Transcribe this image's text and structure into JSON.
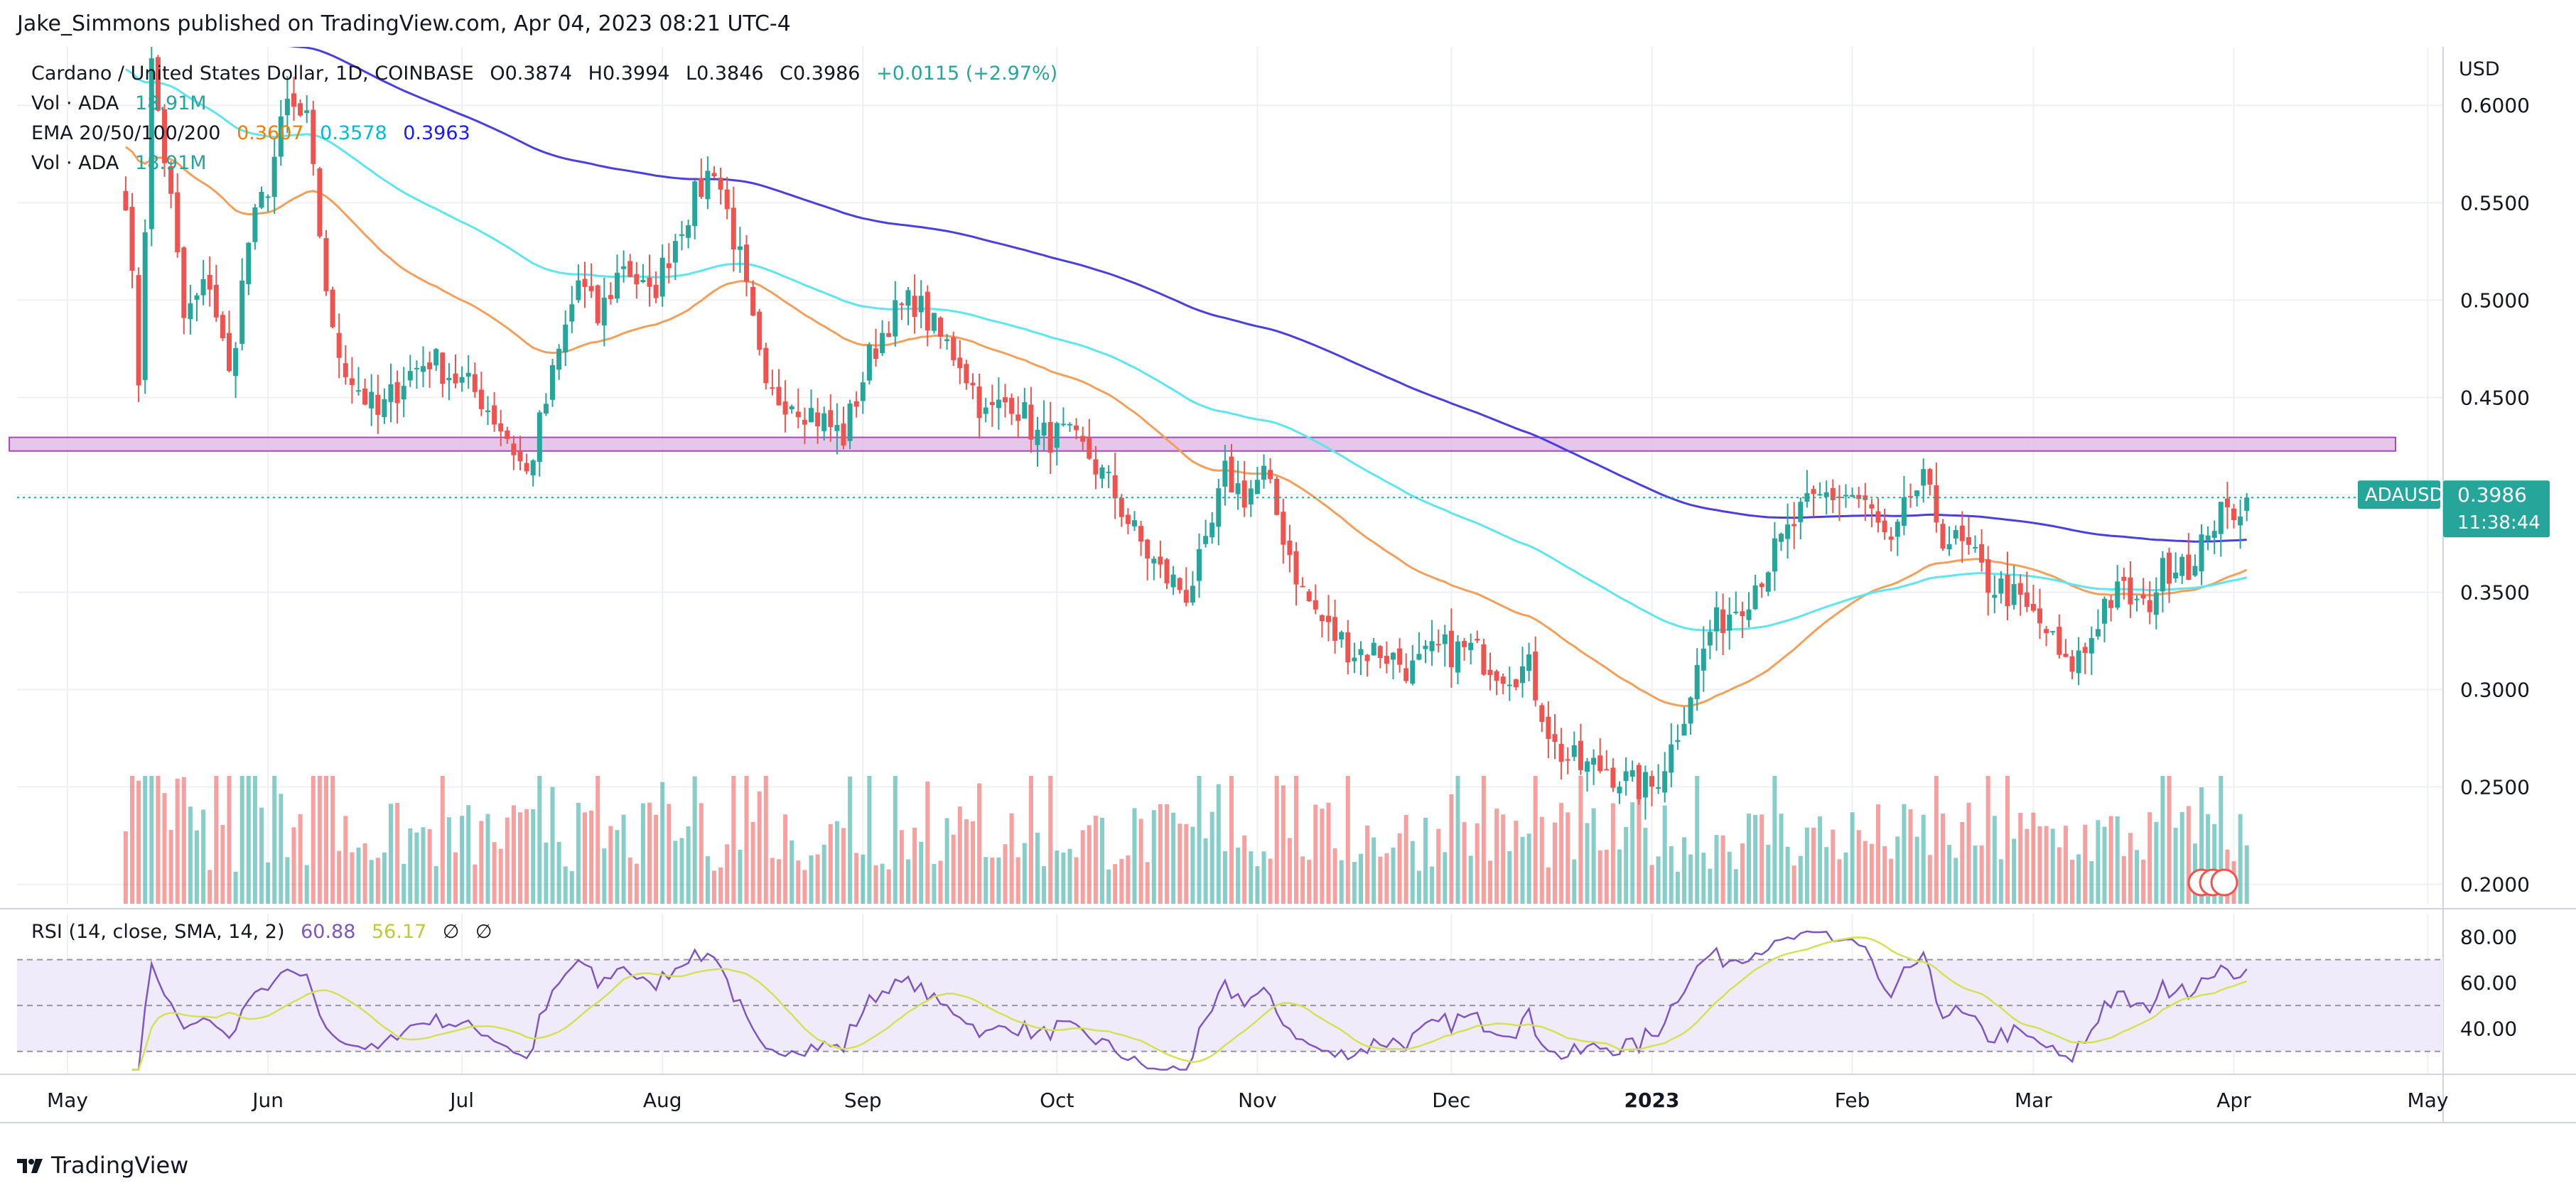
{
  "header": {
    "published": "Jake_Simmons published on TradingView.com, Apr 04, 2023 08:21 UTC-4"
  },
  "legend": {
    "symbol": "Cardano / United States Dollar, 1D, COINBASE",
    "o": "O0.3874",
    "h": "H0.3994",
    "l": "L0.3846",
    "c": "C0.3986",
    "chg": "+0.0115 (+2.97%)",
    "vol_label": "Vol · ADA",
    "vol_value": "18.91M",
    "ema_label": "EMA 20/50/100/200",
    "ema_50": "0.3607",
    "ema_100": "0.3578",
    "ema_200": "0.3963",
    "vol2_label": "Vol · ADA",
    "vol2_value": "18.91M",
    "rsi_label": "RSI (14, close, SMA, 14, 2)",
    "rsi_value": "60.88",
    "rsi_sma": "56.17",
    "rsi_extra1": "∅",
    "rsi_extra2": "∅"
  },
  "price_tag": {
    "symbol": "ADAUSD",
    "price": "0.3986",
    "countdown": "11:38:44"
  },
  "footer": {
    "brand": "TradingView"
  },
  "colors": {
    "up": "#26a69a",
    "down": "#ef5350",
    "ema50": "#f5a05a",
    "ema100": "#5ce6f0",
    "ema200": "#4a3fe0",
    "zone": "#e1bee7",
    "zone_border": "#9c27b0",
    "rsi_line": "#7e57c2",
    "rsi_sma": "#d4e157",
    "rsi_band": "#f0ebfa"
  },
  "chart_data": {
    "type": "candlestick",
    "title": "Cardano / United States Dollar, 1D, COINBASE",
    "currency_label": "USD",
    "ylim": [
      0.19,
      0.63
    ],
    "y_ticks": [
      "0.6000",
      "0.5500",
      "0.5000",
      "0.4500",
      "0.4000",
      "0.3500",
      "0.3000",
      "0.2500",
      "0.2000"
    ],
    "y_tick_values": [
      0.6,
      0.55,
      0.5,
      0.45,
      0.4,
      0.35,
      0.3,
      0.25,
      0.2
    ],
    "x_labels": [
      "May",
      "Jun",
      "Jul",
      "Aug",
      "Sep",
      "Oct",
      "Nov",
      "Dec",
      "2023",
      "Feb",
      "Mar",
      "Apr",
      "May"
    ],
    "x_label_days": [
      0,
      31,
      61,
      92,
      123,
      153,
      184,
      214,
      245,
      276,
      304,
      335,
      365
    ],
    "resistance_zone": [
      0.4225,
      0.4295
    ],
    "resistance_zone_days": [
      -9,
      360
    ],
    "rsi": {
      "ylim": [
        20,
        90
      ],
      "ticks": [
        "80.00",
        "60.00",
        "40.00"
      ],
      "tick_values": [
        80,
        60,
        40
      ],
      "bands": [
        70,
        50,
        30
      ]
    },
    "anchors": [
      [
        9,
        0.555
      ],
      [
        11,
        0.46
      ],
      [
        13,
        0.62
      ],
      [
        16,
        0.55
      ],
      [
        18,
        0.49
      ],
      [
        22,
        0.51
      ],
      [
        25,
        0.46
      ],
      [
        28,
        0.53
      ],
      [
        31,
        0.56
      ],
      [
        34,
        0.6
      ],
      [
        37,
        0.59
      ],
      [
        41,
        0.48
      ],
      [
        44,
        0.46
      ],
      [
        48,
        0.44
      ],
      [
        52,
        0.46
      ],
      [
        56,
        0.47
      ],
      [
        60,
        0.46
      ],
      [
        64,
        0.45
      ],
      [
        68,
        0.43
      ],
      [
        71,
        0.41
      ],
      [
        75,
        0.46
      ],
      [
        79,
        0.51
      ],
      [
        82,
        0.49
      ],
      [
        86,
        0.52
      ],
      [
        90,
        0.5
      ],
      [
        95,
        0.54
      ],
      [
        100,
        0.57
      ],
      [
        104,
        0.52
      ],
      [
        108,
        0.45
      ],
      [
        112,
        0.45
      ],
      [
        116,
        0.44
      ],
      [
        120,
        0.43
      ],
      [
        124,
        0.47
      ],
      [
        127,
        0.49
      ],
      [
        131,
        0.5
      ],
      [
        135,
        0.48
      ],
      [
        138,
        0.47
      ],
      [
        142,
        0.44
      ],
      [
        146,
        0.45
      ],
      [
        150,
        0.43
      ],
      [
        154,
        0.43
      ],
      [
        158,
        0.42
      ],
      [
        162,
        0.4
      ],
      [
        165,
        0.38
      ],
      [
        169,
        0.36
      ],
      [
        173,
        0.35
      ],
      [
        176,
        0.37
      ],
      [
        179,
        0.41
      ],
      [
        182,
        0.4
      ],
      [
        185,
        0.41
      ],
      [
        188,
        0.38
      ],
      [
        191,
        0.35
      ],
      [
        195,
        0.33
      ],
      [
        199,
        0.32
      ],
      [
        203,
        0.32
      ],
      [
        208,
        0.31
      ],
      [
        212,
        0.32
      ],
      [
        217,
        0.32
      ],
      [
        222,
        0.31
      ],
      [
        226,
        0.31
      ],
      [
        230,
        0.27
      ],
      [
        234,
        0.26
      ],
      [
        238,
        0.26
      ],
      [
        242,
        0.25
      ],
      [
        245,
        0.25
      ],
      [
        248,
        0.27
      ],
      [
        251,
        0.3
      ],
      [
        254,
        0.33
      ],
      [
        257,
        0.34
      ],
      [
        260,
        0.35
      ],
      [
        264,
        0.37
      ],
      [
        268,
        0.39
      ],
      [
        272,
        0.4
      ],
      [
        276,
        0.4
      ],
      [
        279,
        0.39
      ],
      [
        282,
        0.37
      ],
      [
        285,
        0.4
      ],
      [
        287,
        0.405
      ],
      [
        290,
        0.38
      ],
      [
        294,
        0.37
      ],
      [
        297,
        0.355
      ],
      [
        300,
        0.35
      ],
      [
        303,
        0.34
      ],
      [
        306,
        0.33
      ],
      [
        309,
        0.31
      ],
      [
        312,
        0.32
      ],
      [
        315,
        0.345
      ],
      [
        318,
        0.35
      ],
      [
        321,
        0.34
      ],
      [
        324,
        0.36
      ],
      [
        327,
        0.37
      ],
      [
        329,
        0.36
      ],
      [
        331,
        0.385
      ],
      [
        334,
        0.39
      ],
      [
        337,
        0.3986
      ]
    ]
  }
}
